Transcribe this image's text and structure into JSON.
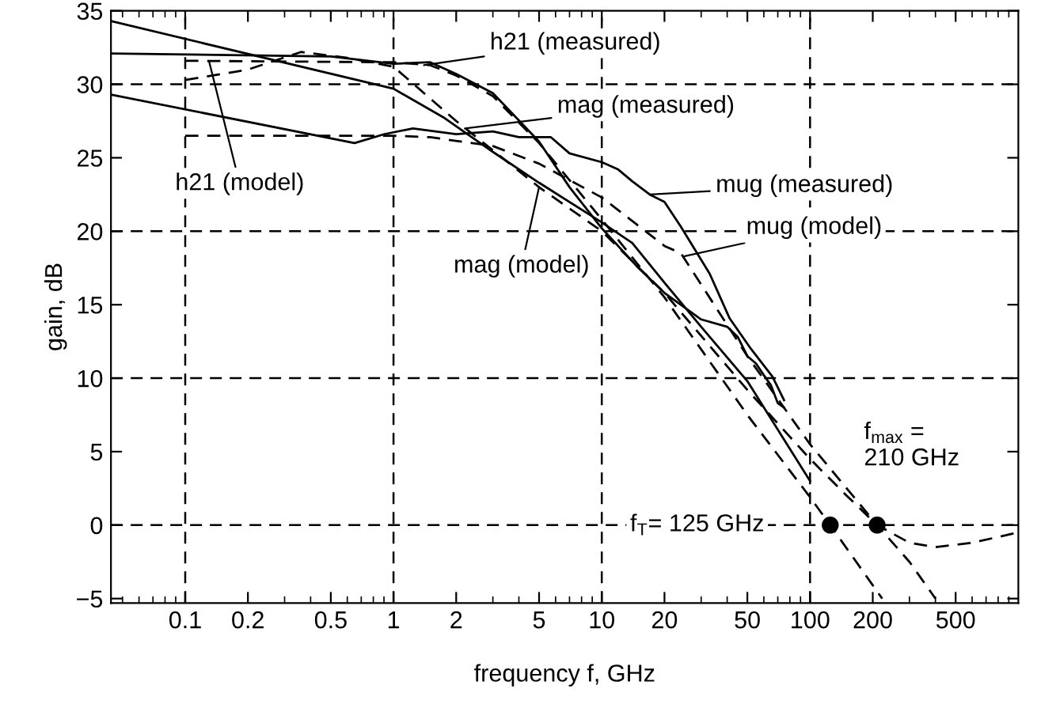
{
  "chart_data": {
    "type": "line",
    "xlabel": "frequency f, GHz",
    "ylabel": "gain, dB",
    "log": "x",
    "xlim": [
      0.044,
      1000
    ],
    "ylim": [
      -5.3,
      35
    ],
    "xticks": [
      0.1,
      0.2,
      0.5,
      1,
      2,
      5,
      10,
      20,
      50,
      100,
      200,
      500
    ],
    "yticks": [
      {
        "value": -5,
        "label": "−5"
      },
      0,
      5,
      10,
      15,
      20,
      25,
      30,
      35
    ],
    "grid": false,
    "legend": false,
    "series": [
      {
        "type": "line",
        "line_style": "solid",
        "color": "#000000",
        "x": [
          0.044,
          0.5,
          1,
          1.5,
          2,
          3,
          5,
          7,
          10,
          15,
          20,
          30,
          40,
          45,
          50,
          55,
          60,
          65,
          70,
          75
        ],
        "values": [
          32.1,
          31.9,
          31.4,
          31.5,
          30.7,
          29.4,
          26.1,
          23.0,
          20.2,
          17.5,
          15.8,
          14.0,
          13.5,
          12.8,
          11.5,
          11.0,
          10.2,
          9.5,
          8.3,
          8.0
        ]
      },
      {
        "type": "line",
        "line_style": "solid",
        "color": "#000000",
        "x": [
          0.044,
          1,
          1.76,
          3,
          5,
          10,
          14,
          20,
          30,
          50,
          100
        ],
        "values": [
          34.3,
          29.7,
          27.7,
          25.4,
          23.3,
          20.6,
          19.2,
          16.5,
          13.5,
          9.8,
          3.0
        ]
      },
      {
        "type": "line",
        "line_style": "solid",
        "color": "#000000",
        "x": [
          0.044,
          0.65,
          0.9,
          1.24,
          2,
          3,
          4,
          5.7,
          7,
          10,
          12,
          14,
          17,
          20,
          24,
          33,
          41,
          52,
          66,
          75
        ],
        "values": [
          29.3,
          26.0,
          26.6,
          27.0,
          26.6,
          26.8,
          26.4,
          26.4,
          25.3,
          24.7,
          24.2,
          23.4,
          22.5,
          22.0,
          20.3,
          17.1,
          14.1,
          12.0,
          10.1,
          8.5
        ]
      },
      {
        "type": "line",
        "line_style": "dashed",
        "color": "#000000",
        "x": [
          0.1,
          1,
          1.5,
          2,
          3,
          5,
          10,
          20,
          50,
          100,
          125,
          222
        ],
        "values": [
          31.6,
          31.5,
          31.3,
          30.6,
          29.2,
          26.0,
          20.8,
          15.5,
          7.5,
          1.9,
          0,
          -5
        ]
      },
      {
        "type": "line",
        "line_style": "dashed",
        "color": "#000000",
        "x": [
          0.1,
          0.2,
          0.36,
          0.6,
          1,
          2,
          5,
          10,
          20,
          50,
          100,
          150,
          210,
          300,
          400,
          600,
          1000
        ],
        "values": [
          30.3,
          31.0,
          32.2,
          31.8,
          31.2,
          27.5,
          23.0,
          20.0,
          15.8,
          9.2,
          4.5,
          2.0,
          0,
          -1.2,
          -1.5,
          -1.2,
          -0.5
        ]
      },
      {
        "type": "line",
        "line_style": "dashed",
        "color": "#000000",
        "x": [
          0.1,
          1,
          1.5,
          3,
          5,
          10,
          20,
          24,
          50,
          100,
          210,
          300,
          400
        ],
        "values": [
          26.5,
          26.5,
          26.4,
          25.8,
          24.6,
          22.3,
          19.0,
          18.5,
          11.5,
          5.5,
          0,
          -2.5,
          -5
        ]
      },
      {
        "type": "scatter",
        "marker": "circle",
        "color": "#000000",
        "x": [
          125,
          210
        ],
        "values": [
          0,
          0
        ]
      }
    ],
    "ref_lines": [
      {
        "axis": "x",
        "value": 0.1,
        "line_style": "dashed",
        "color": "#000000"
      },
      {
        "axis": "x",
        "value": 1,
        "line_style": "dashed",
        "color": "#000000"
      },
      {
        "axis": "x",
        "value": 10,
        "line_style": "dashed",
        "color": "#000000"
      },
      {
        "axis": "x",
        "value": 100,
        "line_style": "dashed",
        "color": "#000000"
      },
      {
        "axis": "y",
        "value": 0,
        "line_style": "dashed",
        "color": "#000000"
      },
      {
        "axis": "y",
        "value": 10,
        "line_style": "dashed",
        "color": "#000000"
      },
      {
        "axis": "y",
        "value": 20,
        "line_style": "dashed",
        "color": "#000000"
      },
      {
        "axis": "y",
        "value": 30,
        "line_style": "dashed",
        "color": "#000000"
      }
    ],
    "annotations": [
      {
        "text": "h21 (measured)",
        "x": 1.4,
        "y": 31.3
      },
      {
        "text": "mag (measured)",
        "x": 2.2,
        "y": 27.0
      },
      {
        "text": "mug (measured)",
        "x": 17,
        "y": 22.5
      },
      {
        "text": "mug (model)",
        "x": 25,
        "y": 18.3
      },
      {
        "text": "mag (model)",
        "x": 5,
        "y": 23.0
      },
      {
        "text": "h21 (model)",
        "x": 0.13,
        "y": 31.6
      },
      {
        "text": "f$_{T}$= 125 GHz",
        "x": 125,
        "y": 0
      },
      {
        "text": "f$_{max}$ =\n210 GHz",
        "x": 210,
        "y": 0
      }
    ]
  }
}
